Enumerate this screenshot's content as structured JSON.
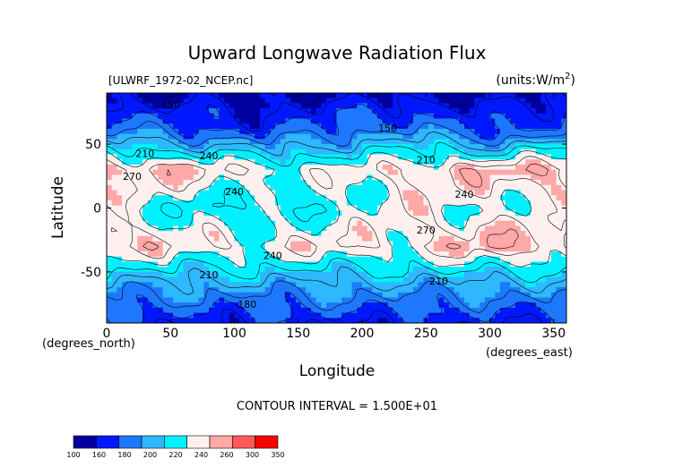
{
  "chart_data": {
    "type": "heatmap",
    "title": "Upward Longwave Radiation Flux",
    "dataset_label": "[ULWRF_1972-02_NCEP.nc]",
    "units_label": "(units:W/m^2)",
    "xlabel": "Longitude",
    "ylabel": "Latitude",
    "x_unit_label": "(degrees_east)",
    "y_unit_label": "(degrees_north)",
    "xlim": [
      0,
      360
    ],
    "ylim": [
      -90,
      90
    ],
    "x_ticks": [
      "0",
      "50",
      "100",
      "150",
      "200",
      "250",
      "300",
      "350"
    ],
    "y_ticks": [
      "50",
      "0",
      "-50"
    ],
    "contour_interval_text": "CONTOUR INTERVAL = 1.500E+01",
    "contour_labels": [
      "150",
      "180",
      "210",
      "240",
      "270"
    ],
    "colorbar": {
      "levels": [
        "100",
        "160",
        "180",
        "200",
        "220",
        "240",
        "260",
        "300",
        "350"
      ],
      "colors": [
        "#0000a0",
        "#0018ff",
        "#1e78ff",
        "#2eb8ff",
        "#00f0ff",
        "#fff0f0",
        "#ffa8a8",
        "#ff5a5a",
        "#ff0000"
      ]
    },
    "values_lat": [
      90,
      60,
      30,
      0,
      -30,
      -60,
      -90
    ],
    "values_lon": [
      0,
      60,
      120,
      180,
      240,
      300,
      360
    ],
    "values": [
      [
        155,
        155,
        155,
        155,
        155,
        155,
        155
      ],
      [
        195,
        185,
        175,
        190,
        200,
        175,
        195
      ],
      [
        265,
        260,
        250,
        245,
        255,
        265,
        265
      ],
      [
        245,
        230,
        225,
        235,
        250,
        240,
        245
      ],
      [
        260,
        255,
        250,
        255,
        250,
        270,
        260
      ],
      [
        205,
        205,
        205,
        205,
        205,
        205,
        205
      ],
      [
        170,
        170,
        170,
        170,
        170,
        170,
        170
      ]
    ]
  }
}
